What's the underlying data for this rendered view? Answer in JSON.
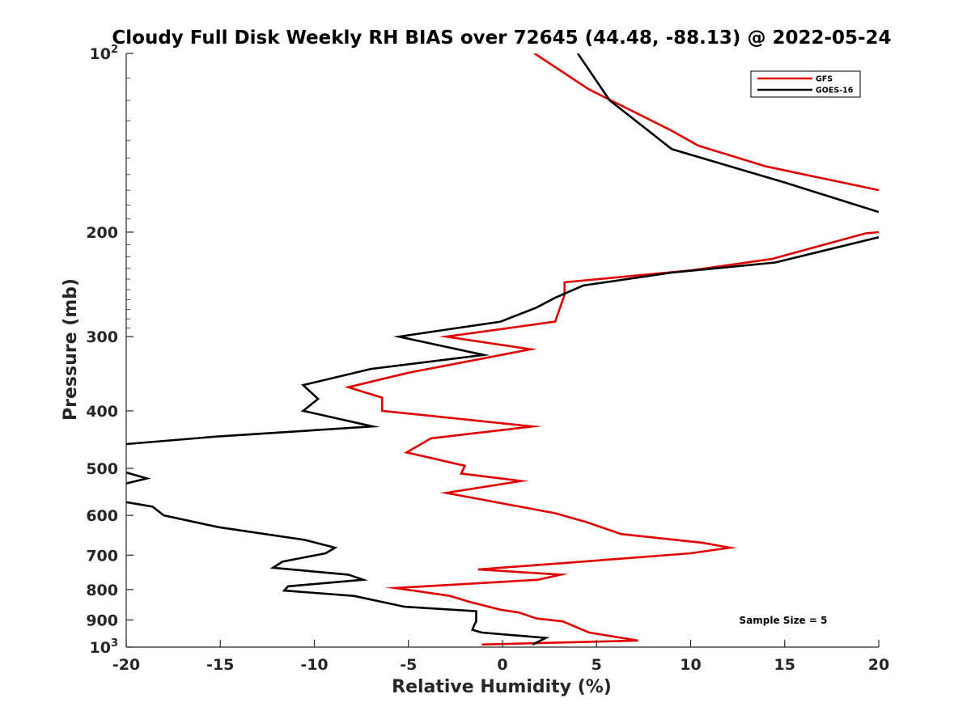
{
  "chart_data": {
    "type": "line",
    "title": "Cloudy Full Disk Weekly RH BIAS over 72645 (44.48, -88.13) @ 2022-05-24",
    "xlabel": "Relative Humidity (%)",
    "ylabel": "Pressure (mb)",
    "xlim": [
      -20,
      20
    ],
    "ylim": [
      1000,
      100
    ],
    "y_scale": "log",
    "y_reversed": true,
    "x_ticks": [
      "-20",
      "-15",
      "-10",
      "-5",
      "0",
      "5",
      "10",
      "15",
      "20"
    ],
    "y_ticks": [
      {
        "value": 100,
        "base": "10",
        "exp": "2"
      },
      {
        "value": 200,
        "label": "200"
      },
      {
        "value": 300,
        "label": "300"
      },
      {
        "value": 400,
        "label": "400"
      },
      {
        "value": 500,
        "label": "500"
      },
      {
        "value": 600,
        "label": "600"
      },
      {
        "value": 700,
        "label": "700"
      },
      {
        "value": 800,
        "label": "800"
      },
      {
        "value": 900,
        "label": "900"
      },
      {
        "value": 1000,
        "base": "10",
        "exp": "3"
      }
    ],
    "grid": false,
    "legend_position": "top-right",
    "annotation": "Sample Size = 5",
    "series": [
      {
        "name": "GFS",
        "color": "#e00000",
        "segments": [
          [
            [
              1.7,
              100
            ],
            [
              4.6,
              115
            ],
            [
              9,
              135
            ],
            [
              10.4,
              143
            ],
            [
              14,
              155
            ],
            [
              20,
              170
            ]
          ],
          [
            [
              20,
              200
            ],
            [
              19.3,
              201
            ],
            [
              14.3,
              222
            ],
            [
              10,
              232
            ],
            [
              3.3,
              243
            ],
            [
              3.3,
              255
            ],
            [
              2.8,
              283
            ],
            [
              -3,
              300
            ],
            [
              1.5,
              315
            ],
            [
              -5,
              345
            ],
            [
              -8.2,
              365
            ],
            [
              -6.4,
              380
            ],
            [
              -6.4,
              400
            ],
            [
              1.6,
              425
            ],
            [
              -3.8,
              445
            ],
            [
              -5.1,
              470
            ],
            [
              -2,
              495
            ],
            [
              -2.2,
              510
            ],
            [
              1,
              525
            ],
            [
              -3,
              550
            ],
            [
              -1,
              565
            ],
            [
              2.8,
              595
            ],
            [
              4.4,
              615
            ],
            [
              6.3,
              645
            ],
            [
              10.6,
              667
            ],
            [
              12.1,
              680
            ],
            [
              10,
              695
            ],
            [
              4.2,
              718
            ],
            [
              -1.3,
              740
            ],
            [
              3.1,
              755
            ],
            [
              1.9,
              770
            ],
            [
              -5.7,
              795
            ],
            [
              -2.8,
              820
            ],
            [
              -1.7,
              840
            ],
            [
              -0.1,
              865
            ],
            [
              0.9,
              875
            ],
            [
              1.8,
              895
            ],
            [
              3.2,
              905
            ],
            [
              4.6,
              945
            ],
            [
              7.2,
              975
            ],
            [
              -1.1,
              990
            ]
          ]
        ]
      },
      {
        "name": "GOES-16",
        "color": "#000000",
        "segments": [
          [
            [
              4,
              100
            ],
            [
              5.7,
              120
            ],
            [
              9,
              145
            ],
            [
              15,
              165
            ],
            [
              18.8,
              180
            ],
            [
              20,
              185
            ]
          ],
          [
            [
              20,
              204
            ],
            [
              14.5,
              225
            ],
            [
              9,
              234
            ],
            [
              4.3,
              246
            ],
            [
              2.8,
              258
            ],
            [
              1.8,
              268
            ],
            [
              -0.1,
              283
            ],
            [
              -5.5,
              300
            ],
            [
              -1,
              322
            ],
            [
              -7,
              340
            ],
            [
              -10.6,
              362
            ],
            [
              -9.8,
              382
            ],
            [
              -10.6,
              400
            ],
            [
              -6.9,
              425
            ],
            [
              -15.2,
              442
            ],
            [
              -20,
              455
            ]
          ],
          [
            [
              -20,
              508
            ],
            [
              -18.9,
              520
            ],
            [
              -20,
              530
            ]
          ],
          [
            [
              -20,
              570
            ],
            [
              -18.6,
              580
            ],
            [
              -18,
              600
            ],
            [
              -15.1,
              628
            ],
            [
              -10.5,
              660
            ],
            [
              -8.9,
              680
            ],
            [
              -9.4,
              695
            ],
            [
              -11.7,
              718
            ],
            [
              -12.2,
              735
            ],
            [
              -8.2,
              755
            ],
            [
              -7.4,
              770
            ],
            [
              -11.4,
              790
            ],
            [
              -11.6,
              803
            ],
            [
              -7.9,
              820
            ],
            [
              -5.2,
              855
            ],
            [
              -1.4,
              870
            ],
            [
              -1.4,
              890
            ],
            [
              -1.4,
              905
            ],
            [
              -1.5,
              918
            ],
            [
              -1.6,
              935
            ],
            [
              -1.1,
              945
            ],
            [
              2.3,
              965
            ],
            [
              1.6,
              990
            ]
          ]
        ]
      }
    ]
  }
}
